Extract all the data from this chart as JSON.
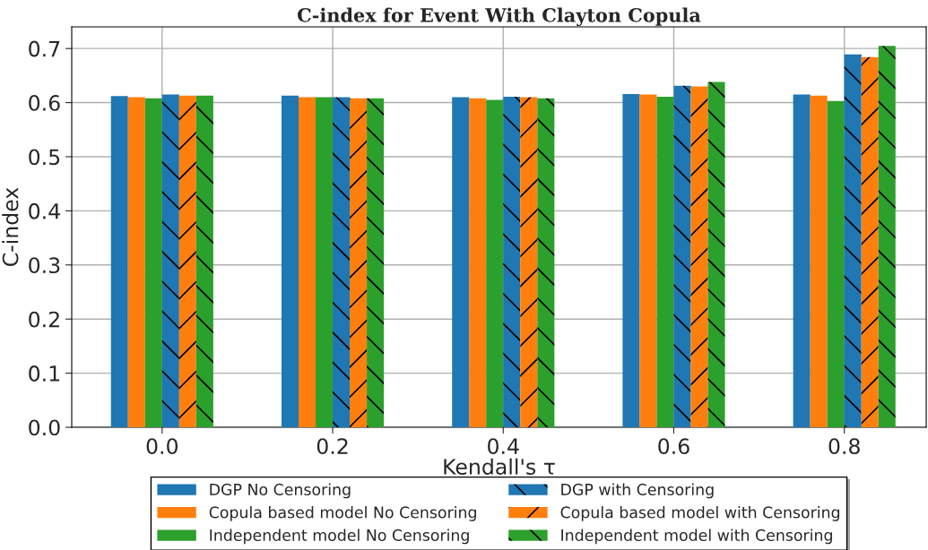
{
  "chart_data": {
    "type": "bar",
    "title": "C-index for Event With Clayton Copula",
    "xlabel": "Kendall's τ",
    "ylabel": "C-index",
    "categories": [
      "0.0",
      "0.2",
      "0.4",
      "0.6",
      "0.8"
    ],
    "series": [
      {
        "name": "DGP No Censoring",
        "color": "#1f77b4",
        "values": [
          0.612,
          0.613,
          0.61,
          0.616,
          0.615
        ]
      },
      {
        "name": "Copula based model No Censoring",
        "color": "#ff7f0e",
        "values": [
          0.61,
          0.61,
          0.608,
          0.615,
          0.613
        ]
      },
      {
        "name": "Independent model No Censoring",
        "color": "#2ca02c",
        "values": [
          0.608,
          0.61,
          0.605,
          0.611,
          0.603
        ]
      },
      {
        "name": "DGP with Censoring",
        "color": "#1f77b4",
        "values": [
          0.615,
          0.61,
          0.611,
          0.631,
          0.689
        ]
      },
      {
        "name": "Copula based model with Censoring",
        "color": "#ff7f0e",
        "values": [
          0.613,
          0.608,
          0.61,
          0.63,
          0.684
        ]
      },
      {
        "name": "Independent model with Censoring",
        "color": "#2ca02c",
        "values": [
          0.613,
          0.608,
          0.608,
          0.638,
          0.705
        ]
      }
    ],
    "ylim": [
      0,
      0.74
    ],
    "yticks": [
      {
        "value": 0,
        "label": "0.0"
      },
      0.1,
      0.2,
      0.3,
      0.4,
      0.5,
      0.6,
      0.7
    ],
    "grid": true,
    "legend": "bottom"
  }
}
